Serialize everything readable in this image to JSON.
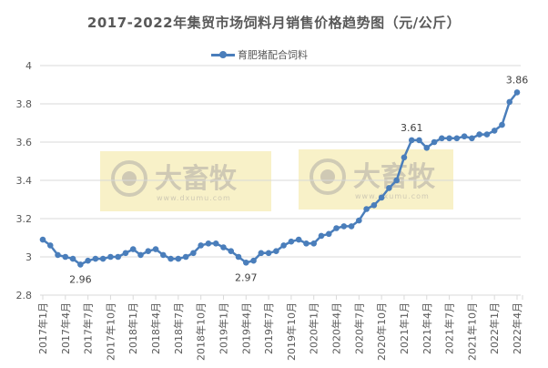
{
  "chart_data": {
    "type": "line",
    "title": "2017-2022年集贸市场饲料月销售价格趋势图（元/公斤）",
    "xlabel": "",
    "ylabel": "",
    "ylim": [
      2.8,
      4
    ],
    "yticks": [
      "4",
      "3.8",
      "3.6",
      "3.4",
      "3.2",
      "3",
      "2.8"
    ],
    "grid": true,
    "legend_position": "top",
    "x_tick_labels": [
      "2017年1月",
      "2017年4月",
      "2017年7月",
      "2017年10月",
      "2018年1月",
      "2018年4月",
      "2018年7月",
      "2018年10月",
      "2019年1月",
      "2019年4月",
      "2019年7月",
      "2019年10月",
      "2020年1月",
      "2020年4月",
      "2020年7月",
      "2020年10月",
      "2021年1月",
      "2021年4月",
      "2021年7月",
      "2021年10月",
      "2022年1月",
      "2022年4月"
    ],
    "series": [
      {
        "name": "育肥猪配合饲料",
        "color": "#4a7ebb",
        "values": [
          3.09,
          3.06,
          3.01,
          3.0,
          2.99,
          2.96,
          2.98,
          2.99,
          2.99,
          3.0,
          3.0,
          3.02,
          3.04,
          3.01,
          3.03,
          3.04,
          3.01,
          2.99,
          2.99,
          3.0,
          3.02,
          3.06,
          3.07,
          3.07,
          3.05,
          3.03,
          3.0,
          2.97,
          2.98,
          3.02,
          3.02,
          3.03,
          3.06,
          3.08,
          3.09,
          3.07,
          3.07,
          3.11,
          3.12,
          3.15,
          3.16,
          3.16,
          3.19,
          3.25,
          3.27,
          3.31,
          3.36,
          3.4,
          3.52,
          3.61,
          3.61,
          3.57,
          3.6,
          3.62,
          3.62,
          3.62,
          3.63,
          3.62,
          3.64,
          3.64,
          3.66,
          3.69,
          3.81,
          3.86
        ]
      }
    ],
    "annotations": [
      {
        "index": 5,
        "label": "2.96",
        "position": "below"
      },
      {
        "index": 27,
        "label": "2.97",
        "position": "below"
      },
      {
        "index": 49,
        "label": "3.61",
        "position": "above"
      },
      {
        "index": 63,
        "label": "3.86",
        "position": "above"
      }
    ]
  },
  "title": "2017-2022年集贸市场饲料月销售价格趋势图（元/公斤）",
  "legend": {
    "label": "育肥猪配合饲料"
  },
  "watermarks": [
    {
      "brand": "大畜牧",
      "url": "www.dxumu.com"
    },
    {
      "brand": "大畜牧",
      "url": "www.dxumu.com"
    }
  ]
}
